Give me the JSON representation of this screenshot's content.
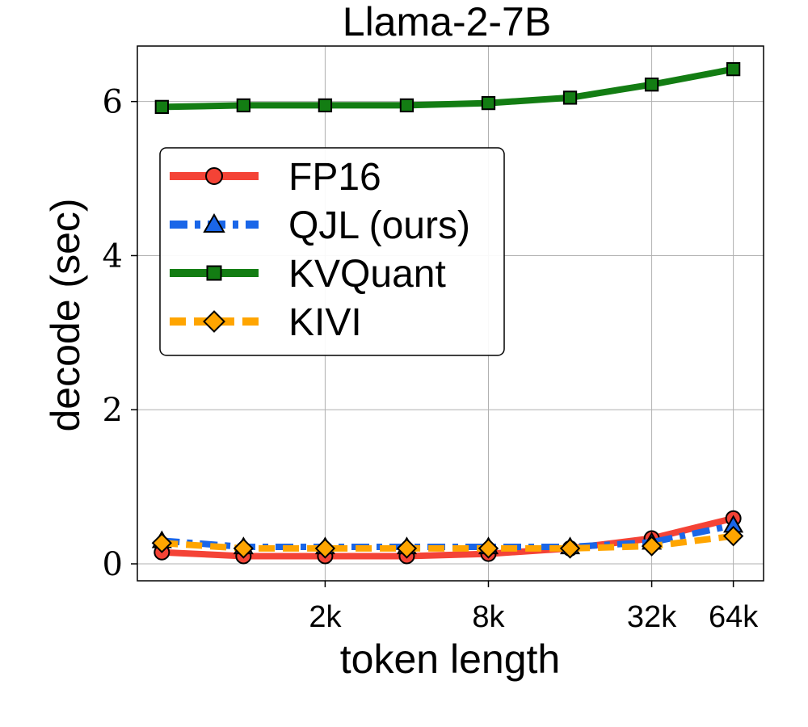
{
  "chart_data": {
    "type": "line",
    "title": "Llama-2-7B",
    "xlabel": "token length",
    "ylabel": "decode (sec)",
    "x_index": [
      0,
      1,
      2,
      3,
      4,
      5,
      6,
      7
    ],
    "x_tick_labels": [
      {
        "label": "2k",
        "index": 2
      },
      {
        "label": "8k",
        "index": 4
      },
      {
        "label": "32k",
        "index": 6
      },
      {
        "label": "64k",
        "index": 7
      }
    ],
    "yticks": [
      0,
      2,
      4,
      6
    ],
    "xlim": [
      -0.3,
      7.37
    ],
    "ylim": [
      -0.22,
      6.72
    ],
    "grid": true,
    "legend_position": "upper-left",
    "series": [
      {
        "name": "FP16",
        "color": "#f44336",
        "marker": "circle",
        "dash": "solid",
        "values": [
          0.15,
          0.1,
          0.1,
          0.1,
          0.13,
          0.2,
          0.33,
          0.59
        ]
      },
      {
        "name": "QJL (ours)",
        "color": "#1a66e8",
        "marker": "triangle",
        "dash": "dashdot",
        "values": [
          0.3,
          0.22,
          0.22,
          0.22,
          0.22,
          0.22,
          0.28,
          0.5
        ]
      },
      {
        "name": "KVQuant",
        "color": "#137d13",
        "marker": "square",
        "dash": "solid",
        "values": [
          5.93,
          5.95,
          5.95,
          5.95,
          5.98,
          6.05,
          6.22,
          6.42
        ]
      },
      {
        "name": "KIVI",
        "color": "#ffa500",
        "marker": "diamond",
        "dash": "dashed",
        "values": [
          0.27,
          0.2,
          0.2,
          0.2,
          0.2,
          0.2,
          0.23,
          0.36
        ]
      }
    ]
  }
}
